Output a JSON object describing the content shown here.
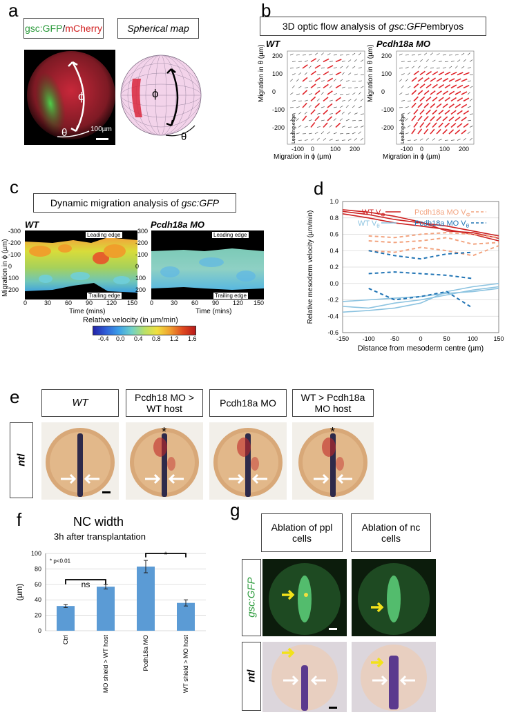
{
  "panels": {
    "a": {
      "letter": "a",
      "label_gsc": "gsc:GFP",
      "label_slash": "/",
      "label_mcherry": "mCherry",
      "label_map": "Spherical map",
      "phi": "ϕ",
      "theta": "θ",
      "scalebar": "100µm"
    },
    "b": {
      "letter": "b",
      "title_prefix": "3D optic flow analysis of ",
      "title_italic": "gsc:GFP",
      "title_suffix": " embryos",
      "left_title": "WT",
      "right_title": "Pcdh18a MO",
      "ylabel": "Migration in θ (µm)",
      "xlabel": "Migration in ϕ (µm)",
      "leading_edge": "Leading edge",
      "yticks": [
        "200",
        "100",
        "0",
        "-100",
        "-200"
      ],
      "xticks": [
        "-100",
        "0",
        "100",
        "200"
      ]
    },
    "c": {
      "letter": "c",
      "title_prefix": "Dynamic migration analysis of ",
      "title_italic": "gsc:GFP",
      "left_title": "WT",
      "right_title": "Pcdh18a MO",
      "ylabel": "Migration in ϕ (µm)",
      "xlabel": "Time (mins)",
      "yticks": [
        "-300",
        "-200",
        "-100",
        "0",
        "100",
        "200"
      ],
      "xticks": [
        "0",
        "30",
        "60",
        "90",
        "120",
        "150"
      ],
      "leading_edge": "Leading edge",
      "trailing_edge": "Trailing edge",
      "colorbar_label": "Relative velocity (in µm/min)",
      "colorbar_ticks": [
        "-0.4",
        "0.0",
        "0.4",
        "0.8",
        "1.2",
        "1.6"
      ]
    },
    "d": {
      "letter": "d",
      "legend_wt_vphi": "WT V",
      "legend_wt_vphi_sub": "Φ",
      "legend_wt_vtheta": "WT V",
      "legend_wt_vtheta_sub": "θ",
      "legend_mo_vphi": "Pcdh18a MO V",
      "legend_mo_vphi_sub": "Φ",
      "legend_mo_vtheta": "Pcdh18a MO V",
      "legend_mo_vtheta_sub": "θ",
      "ylabel": "Relative mesoderm velocity (µm/min)",
      "xlabel": "Distance from mesoderm centre (µm)",
      "yticks": [
        "1.0",
        "0.8",
        "0.6",
        "0.4",
        "0.2",
        "0.0",
        "-0.2",
        "-0.4",
        "-0.6"
      ],
      "xticks": [
        "-150",
        "-100",
        "-50",
        "0",
        "50",
        "100",
        "150"
      ]
    },
    "e": {
      "letter": "e",
      "col1": "WT",
      "col2": "Pcdh18 MO > WT host",
      "col3": "Pcdh18a MO",
      "col4": "WT > Pcdh18a MO host",
      "row_label": "ntl",
      "asterisk": "*"
    },
    "f": {
      "letter": "f",
      "title": "NC width",
      "subtitle": "3h after transplantation",
      "ylabel": "(µm)",
      "pnote": "* p<0.01",
      "ns": "ns",
      "star": "*",
      "yticks": [
        "100",
        "80",
        "60",
        "40",
        "20",
        "0"
      ]
    },
    "g": {
      "letter": "g",
      "col1": "Ablation of ppl cells",
      "col2": "Ablation of nc cells",
      "row1": "gsc:GFP",
      "row2": "ntl"
    }
  },
  "chart_data": [
    {
      "type": "line",
      "panel": "d",
      "xlabel": "Distance from mesoderm centre (µm)",
      "ylabel": "Relative mesoderm velocity (µm/min)",
      "xlim": [
        -150,
        150
      ],
      "ylim": [
        -0.6,
        1.0
      ],
      "grid": true,
      "legend": "top",
      "series": [
        {
          "name": "WT VΦ",
          "color": "#cc1f1f",
          "x": [
            -150,
            -100,
            -50,
            0,
            50,
            100,
            150
          ],
          "y": [
            0.88,
            0.84,
            0.78,
            0.74,
            0.7,
            0.64,
            0.58
          ]
        },
        {
          "name": "WT VΦ",
          "color": "#cc1f1f",
          "x": [
            -150,
            -100,
            -50,
            0,
            50,
            100,
            150
          ],
          "y": [
            0.85,
            0.8,
            0.74,
            0.7,
            0.66,
            0.6,
            0.52
          ]
        },
        {
          "name": "WT VΦ",
          "color": "#cc1f1f",
          "x": [
            -150,
            -100,
            -50,
            0,
            50,
            100,
            150
          ],
          "y": [
            0.9,
            0.87,
            0.82,
            0.75,
            0.64,
            0.62,
            0.55
          ]
        },
        {
          "name": "WT Vθ",
          "color": "#8cc3e0",
          "x": [
            -150,
            -100,
            -50,
            0,
            50,
            100,
            150
          ],
          "y": [
            -0.28,
            -0.3,
            -0.24,
            -0.2,
            -0.14,
            -0.08,
            -0.04
          ]
        },
        {
          "name": "WT Vθ",
          "color": "#8cc3e0",
          "x": [
            -150,
            -100,
            -50,
            0,
            50,
            100,
            150
          ],
          "y": [
            -0.22,
            -0.2,
            -0.18,
            -0.16,
            -0.12,
            -0.1,
            -0.06
          ]
        },
        {
          "name": "WT Vθ",
          "color": "#8cc3e0",
          "x": [
            -150,
            -100,
            -50,
            0,
            50,
            100,
            150
          ],
          "y": [
            -0.35,
            -0.33,
            -0.3,
            -0.24,
            -0.1,
            -0.04,
            0.0
          ]
        },
        {
          "name": "Pcdh18a MO VΦ",
          "color": "#f2a37f",
          "x": [
            -100,
            -50,
            0,
            50,
            100,
            150
          ],
          "y": [
            0.52,
            0.5,
            0.52,
            0.56,
            0.48,
            0.5
          ]
        },
        {
          "name": "Pcdh18a MO VΦ",
          "color": "#f2a37f",
          "x": [
            -100,
            -50,
            0,
            50,
            100,
            150
          ],
          "y": [
            0.58,
            0.56,
            0.6,
            0.62,
            0.6,
            0.56
          ]
        },
        {
          "name": "Pcdh18a MO VΦ",
          "color": "#f2a37f",
          "x": [
            -100,
            -50,
            0,
            50,
            100,
            150
          ],
          "y": [
            0.4,
            0.38,
            0.44,
            0.4,
            0.34,
            0.46
          ]
        },
        {
          "name": "Pcdh18a MO Vθ",
          "color": "#1f73b4",
          "x": [
            -100,
            -50,
            0,
            50,
            100
          ],
          "y": [
            0.12,
            0.14,
            0.12,
            0.1,
            0.06
          ]
        },
        {
          "name": "Pcdh18a MO Vθ",
          "color": "#1f73b4",
          "x": [
            -100,
            -50,
            0,
            50,
            100
          ],
          "y": [
            0.4,
            0.34,
            0.3,
            0.36,
            0.38
          ]
        },
        {
          "name": "Pcdh18a MO Vθ",
          "color": "#1f73b4",
          "x": [
            -100,
            -50,
            0,
            50,
            100
          ],
          "y": [
            -0.06,
            -0.2,
            -0.16,
            -0.1,
            -0.3
          ]
        }
      ]
    },
    {
      "type": "bar",
      "panel": "f",
      "title": "NC width",
      "subtitle": "3h after transplantation",
      "ylabel": "(µm)",
      "ylim": [
        0,
        100
      ],
      "grid": true,
      "categories": [
        "Ctrl",
        "MO shield > WT host",
        "Pcdh18a MO",
        "WT shield > MO host"
      ],
      "values": [
        32,
        57,
        83,
        36
      ],
      "errors": [
        2,
        3,
        8,
        4
      ],
      "color": "#5b9bd5"
    }
  ]
}
